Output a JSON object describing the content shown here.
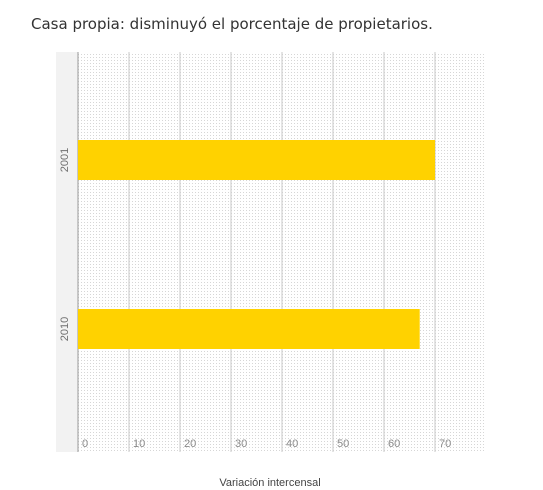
{
  "chart_data": {
    "type": "bar",
    "orientation": "horizontal",
    "title": "Casa propia: disminuyó el porcentaje de propietarios.",
    "categories": [
      "2001",
      "2010"
    ],
    "values": [
      70,
      67
    ],
    "xlabel": "Variación intercensal",
    "ylabel": "",
    "xlim": [
      0,
      80
    ],
    "xticks": [
      0,
      10,
      20,
      30,
      40,
      50,
      60,
      70
    ],
    "grid": true,
    "legend": "none",
    "bar_color": "#FFD200"
  }
}
